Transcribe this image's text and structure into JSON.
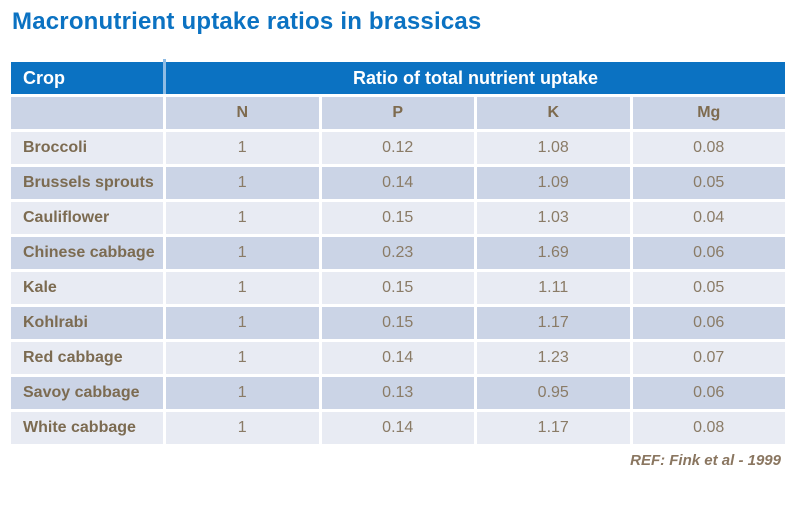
{
  "title": "Macronutrient uptake ratios in brassicas",
  "colors": {
    "accent_blue": "#0B72C2",
    "row_light": "#E8EBF3",
    "row_dark": "#CBD4E6",
    "body_text_brown": "#7C6B51",
    "header_text": "#FFFFFF"
  },
  "table": {
    "header": {
      "crop_label": "Crop",
      "group_label": "Ratio of total nutrient uptake"
    },
    "subheader": [
      "N",
      "P",
      "K",
      "Mg"
    ],
    "rows": [
      {
        "crop": "Broccoli",
        "values": [
          "1",
          "0.12",
          "1.08",
          "0.08"
        ]
      },
      {
        "crop": "Brussels sprouts",
        "values": [
          "1",
          "0.14",
          "1.09",
          "0.05"
        ]
      },
      {
        "crop": "Cauliflower",
        "values": [
          "1",
          "0.15",
          "1.03",
          "0.04"
        ]
      },
      {
        "crop": "Chinese cabbage",
        "values": [
          "1",
          "0.23",
          "1.69",
          "0.06"
        ]
      },
      {
        "crop": "Kale",
        "values": [
          "1",
          "0.15",
          "1.11",
          "0.05"
        ]
      },
      {
        "crop": "Kohlrabi",
        "values": [
          "1",
          "0.15",
          "1.17",
          "0.06"
        ]
      },
      {
        "crop": "Red cabbage",
        "values": [
          "1",
          "0.14",
          "1.23",
          "0.07"
        ]
      },
      {
        "crop": "Savoy cabbage",
        "values": [
          "1",
          "0.13",
          "0.95",
          "0.06"
        ]
      },
      {
        "crop": "White cabbage",
        "values": [
          "1",
          "0.14",
          "1.17",
          "0.08"
        ]
      }
    ]
  },
  "footer": {
    "reference": "REF: Fink et al - 1999"
  },
  "chart_data": {
    "type": "table",
    "title": "Macronutrient uptake ratios in brassicas",
    "group_header": "Ratio of total nutrient uptake",
    "columns": [
      "Crop",
      "N",
      "P",
      "K",
      "Mg"
    ],
    "rows": [
      [
        "Broccoli",
        1,
        0.12,
        1.08,
        0.08
      ],
      [
        "Brussels sprouts",
        1,
        0.14,
        1.09,
        0.05
      ],
      [
        "Cauliflower",
        1,
        0.15,
        1.03,
        0.04
      ],
      [
        "Chinese cabbage",
        1,
        0.23,
        1.69,
        0.06
      ],
      [
        "Kale",
        1,
        0.15,
        1.11,
        0.05
      ],
      [
        "Kohlrabi",
        1,
        0.15,
        1.17,
        0.06
      ],
      [
        "Red cabbage",
        1,
        0.14,
        1.23,
        0.07
      ],
      [
        "Savoy cabbage",
        1,
        0.13,
        0.95,
        0.06
      ],
      [
        "White cabbage",
        1,
        0.14,
        1.17,
        0.08
      ]
    ],
    "source": "REF: Fink et al - 1999"
  }
}
